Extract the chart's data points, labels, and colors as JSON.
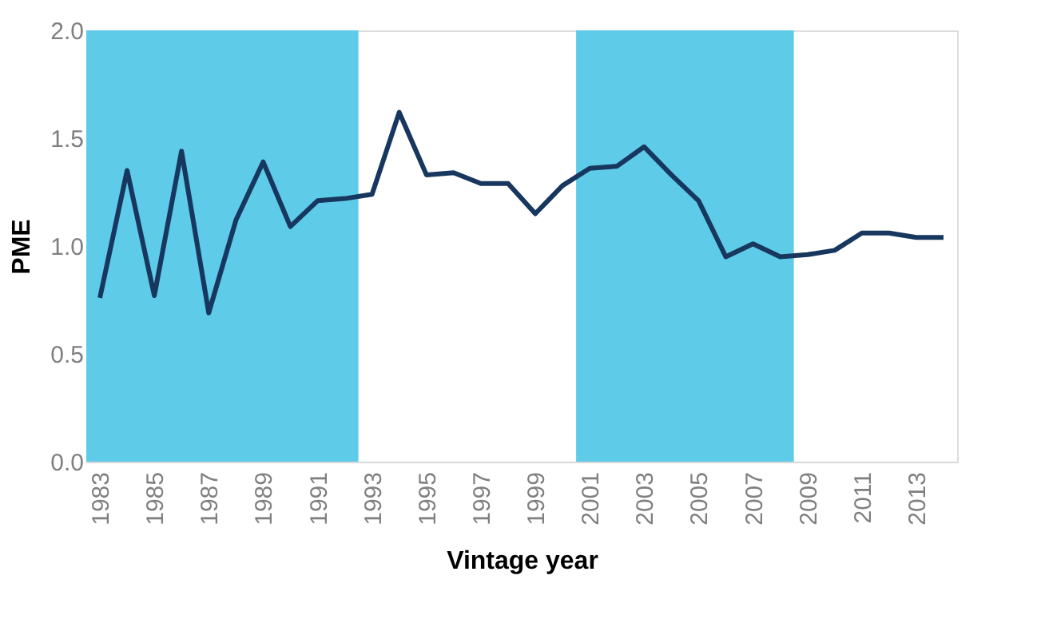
{
  "chart_data": {
    "type": "line",
    "xlabel": "Vintage year",
    "ylabel": "PME",
    "x": [
      1983,
      1984,
      1985,
      1986,
      1987,
      1988,
      1989,
      1990,
      1991,
      1992,
      1993,
      1994,
      1995,
      1996,
      1997,
      1998,
      1999,
      2000,
      2001,
      2002,
      2003,
      2004,
      2005,
      2006,
      2007,
      2008,
      2009,
      2010,
      2011,
      2012,
      2013,
      2014
    ],
    "series": [
      {
        "color": "#17375e",
        "values": [
          0.76,
          1.35,
          0.77,
          1.44,
          0.69,
          1.12,
          1.39,
          1.09,
          1.21,
          1.22,
          1.24,
          1.62,
          1.33,
          1.34,
          1.29,
          1.29,
          1.15,
          1.28,
          1.36,
          1.37,
          1.46,
          1.33,
          1.21,
          0.95,
          1.01,
          0.95,
          0.96,
          0.98,
          1.06,
          1.06,
          1.04,
          1.04
        ]
      }
    ],
    "xlim": [
      1982.5,
      2014.5
    ],
    "xticks": [
      1983,
      1985,
      1987,
      1989,
      1991,
      1993,
      1995,
      1997,
      1999,
      2001,
      2003,
      2005,
      2007,
      2009,
      2011,
      2013
    ],
    "ylim": [
      0,
      2
    ],
    "yticks": [
      {
        "value": 0,
        "label": "0.0"
      },
      0.5,
      {
        "value": 1,
        "label": "1.0"
      },
      1.5,
      {
        "value": 2,
        "label": "2.0"
      }
    ],
    "bands": [
      {
        "axis": "x",
        "from": 1982.5,
        "to": 1992.5,
        "color": "#5ecbe9"
      },
      {
        "axis": "x",
        "from": 2000.5,
        "to": 2008.5,
        "color": "#5ecbe9"
      }
    ],
    "grid": false,
    "marker": "none",
    "line_style": "solid"
  }
}
